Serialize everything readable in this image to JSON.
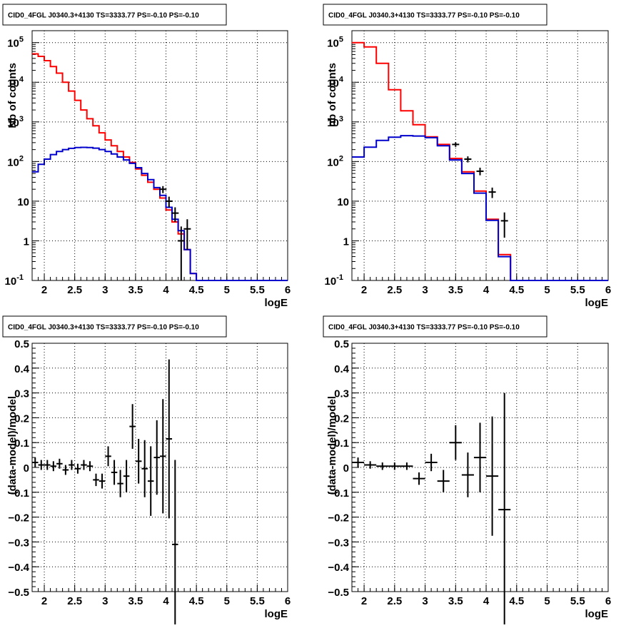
{
  "chart_data": [
    {
      "type": "line",
      "title": "CID0_4FGL J0340.3+4130 TS=3333.77 PS=-0.10 PS=-0.10",
      "xlabel": "logE",
      "ylabel": "Nb of counts",
      "xlim": [
        1.8,
        6.0
      ],
      "ylim": [
        0.1,
        200000
      ],
      "yscale": "log",
      "grid": true,
      "x_ticks": [
        "2",
        "2.5",
        "3",
        "3.5",
        "4",
        "4.5",
        "5",
        "5.5",
        "6"
      ],
      "y_ticks": [
        {
          "base": "10",
          "exp": "-1"
        },
        {
          "base": "1",
          "exp": ""
        },
        {
          "base": "10",
          "exp": ""
        },
        {
          "base": "10",
          "exp": "2"
        },
        {
          "base": "10",
          "exp": "3"
        },
        {
          "base": "10",
          "exp": "4"
        },
        {
          "base": "10",
          "exp": "5"
        }
      ],
      "bin_edges": [
        1.8,
        1.9,
        2.0,
        2.1,
        2.2,
        2.3,
        2.4,
        2.5,
        2.6,
        2.7,
        2.8,
        2.9,
        3.0,
        3.1,
        3.2,
        3.3,
        3.4,
        3.5,
        3.6,
        3.7,
        3.8,
        3.9,
        4.0,
        4.1,
        4.2,
        4.3,
        4.4,
        4.5,
        4.6,
        4.7,
        6.0
      ],
      "series": [
        {
          "color": "#ff0000",
          "style": "step",
          "values": [
            52000,
            45000,
            35000,
            25000,
            17000,
            10000,
            6000,
            3500,
            2000,
            1200,
            800,
            530,
            350,
            250,
            180,
            130,
            95,
            65,
            45,
            30,
            20,
            12,
            6,
            3,
            1.5,
            0.6,
            0.15,
            0.1,
            0.1,
            0.1
          ]
        },
        {
          "color": "#0000cc",
          "style": "step",
          "values": [
            55,
            85,
            115,
            150,
            180,
            200,
            215,
            225,
            228,
            226,
            218,
            200,
            180,
            155,
            130,
            110,
            90,
            70,
            50,
            35,
            22,
            14,
            7,
            3.5,
            1.8,
            0.6,
            0.15,
            0.1,
            0.1,
            0.1
          ]
        },
        {
          "color": "#000000",
          "style": "points",
          "points": [
            {
              "x": 3.95,
              "y": 20,
              "lo": 16,
              "hi": 24
            },
            {
              "x": 4.05,
              "y": 10,
              "lo": 7,
              "hi": 13
            },
            {
              "x": 4.15,
              "y": 5,
              "lo": 3,
              "hi": 7
            },
            {
              "x": 4.25,
              "y": 1,
              "lo": 0.1,
              "hi": 2.3
            },
            {
              "x": 4.35,
              "y": 2,
              "lo": 0.6,
              "hi": 3.5
            }
          ]
        }
      ]
    },
    {
      "type": "line",
      "title": "CID0_4FGL J0340.3+4130 TS=3333.77 PS=-0.10 PS=-0.10",
      "xlabel": "logE",
      "ylabel": "nb of counts",
      "xlim": [
        1.8,
        6.0
      ],
      "ylim": [
        0.1,
        200000
      ],
      "yscale": "log",
      "grid": true,
      "x_ticks": [
        "2",
        "2.5",
        "3",
        "3.5",
        "4",
        "4.5",
        "5",
        "5.5",
        "6"
      ],
      "y_ticks": [
        {
          "base": "10",
          "exp": "-1"
        },
        {
          "base": "1",
          "exp": ""
        },
        {
          "base": "10",
          "exp": ""
        },
        {
          "base": "10",
          "exp": "2"
        },
        {
          "base": "10",
          "exp": "3"
        },
        {
          "base": "10",
          "exp": "4"
        },
        {
          "base": "10",
          "exp": "5"
        }
      ],
      "bin_edges": [
        1.8,
        2.0,
        2.2,
        2.4,
        2.6,
        2.8,
        3.0,
        3.2,
        3.4,
        3.6,
        3.8,
        4.0,
        4.2,
        4.4,
        4.6,
        6.0
      ],
      "series": [
        {
          "color": "#ff0000",
          "style": "step",
          "values": [
            100000,
            78000,
            30000,
            6500,
            1900,
            850,
            420,
            270,
            120,
            55,
            18,
            3.5,
            0.45,
            0.1,
            0.1
          ]
        },
        {
          "color": "#0000cc",
          "style": "step",
          "values": [
            130,
            230,
            340,
            410,
            450,
            440,
            400,
            250,
            110,
            50,
            16,
            3.3,
            0.4,
            0.1,
            0.1
          ]
        },
        {
          "color": "#000000",
          "style": "points",
          "points": [
            {
              "x": 3.5,
              "y": 270,
              "lo": 235,
              "hi": 305
            },
            {
              "x": 3.7,
              "y": 115,
              "lo": 95,
              "hi": 135
            },
            {
              "x": 3.9,
              "y": 57,
              "lo": 45,
              "hi": 70
            },
            {
              "x": 4.1,
              "y": 17,
              "lo": 12,
              "hi": 22
            },
            {
              "x": 4.3,
              "y": 3.2,
              "lo": 1.2,
              "hi": 5.2
            }
          ]
        }
      ]
    },
    {
      "type": "scatter",
      "title": "CID0_4FGL J0340.3+4130 TS=3333.77 PS=-0.10 PS=-0.10",
      "xlabel": "logE",
      "ylabel": "(data-model)/model",
      "xlim": [
        1.8,
        6.0
      ],
      "ylim": [
        -0.5,
        0.5
      ],
      "grid": true,
      "x_ticks": [
        "2",
        "2.5",
        "3",
        "3.5",
        "4",
        "4.5",
        "5",
        "5.5",
        "6"
      ],
      "y_ticks": [
        "−0.5",
        "−0.4",
        "−0.3",
        "−0.2",
        "−0.1",
        "0",
        "0.1",
        "0.2",
        "0.3",
        "0.4",
        "0.5"
      ],
      "points": [
        {
          "x": 1.85,
          "y": 0.02,
          "xerr": 0.05,
          "yerr": 0.02
        },
        {
          "x": 1.95,
          "y": 0.01,
          "xerr": 0.05,
          "yerr": 0.02
        },
        {
          "x": 2.05,
          "y": 0.01,
          "xerr": 0.05,
          "yerr": 0.02
        },
        {
          "x": 2.15,
          "y": 0.005,
          "xerr": 0.05,
          "yerr": 0.02
        },
        {
          "x": 2.25,
          "y": 0.015,
          "xerr": 0.05,
          "yerr": 0.02
        },
        {
          "x": 2.35,
          "y": -0.01,
          "xerr": 0.05,
          "yerr": 0.02
        },
        {
          "x": 2.45,
          "y": 0.01,
          "xerr": 0.05,
          "yerr": 0.02
        },
        {
          "x": 2.55,
          "y": -0.005,
          "xerr": 0.05,
          "yerr": 0.02
        },
        {
          "x": 2.65,
          "y": 0.01,
          "xerr": 0.05,
          "yerr": 0.02
        },
        {
          "x": 2.75,
          "y": 0.005,
          "xerr": 0.05,
          "yerr": 0.02
        },
        {
          "x": 2.85,
          "y": -0.05,
          "xerr": 0.05,
          "yerr": 0.025
        },
        {
          "x": 2.95,
          "y": -0.055,
          "xerr": 0.05,
          "yerr": 0.03
        },
        {
          "x": 3.05,
          "y": 0.045,
          "xerr": 0.05,
          "yerr": 0.04
        },
        {
          "x": 3.15,
          "y": -0.02,
          "xerr": 0.05,
          "yerr": 0.05
        },
        {
          "x": 3.25,
          "y": -0.065,
          "xerr": 0.05,
          "yerr": 0.055
        },
        {
          "x": 3.35,
          "y": -0.035,
          "xerr": 0.05,
          "yerr": 0.065
        },
        {
          "x": 3.45,
          "y": 0.165,
          "xerr": 0.05,
          "yerr": 0.09
        },
        {
          "x": 3.55,
          "y": 0.025,
          "xerr": 0.05,
          "yerr": 0.09
        },
        {
          "x": 3.65,
          "y": -0.005,
          "xerr": 0.05,
          "yerr": 0.115
        },
        {
          "x": 3.75,
          "y": -0.055,
          "xerr": 0.05,
          "yerr": 0.14
        },
        {
          "x": 3.85,
          "y": 0.04,
          "xerr": 0.05,
          "yerr": 0.15
        },
        {
          "x": 3.95,
          "y": 0.045,
          "xerr": 0.05,
          "yerr": 0.23
        },
        {
          "x": 4.05,
          "y": 0.115,
          "xerr": 0.05,
          "yerr": 0.32
        },
        {
          "x": 4.15,
          "y": -0.31,
          "xerr": 0.05,
          "yerr": 0.34
        }
      ]
    },
    {
      "type": "scatter",
      "title": "CID0_4FGL J0340.3+4130 TS=3333.77 PS=-0.10 PS=-0.10",
      "xlabel": "logE",
      "ylabel": "(data-model)/model",
      "xlim": [
        1.8,
        6.0
      ],
      "ylim": [
        -0.5,
        0.5
      ],
      "grid": true,
      "x_ticks": [
        "2",
        "2.5",
        "3",
        "3.5",
        "4",
        "4.5",
        "5",
        "5.5",
        "6"
      ],
      "y_ticks": [
        "−0.5",
        "−0.4",
        "−0.3",
        "−0.2",
        "−0.1",
        "0",
        "0.1",
        "0.2",
        "0.3",
        "0.4",
        "0.5"
      ],
      "points": [
        {
          "x": 1.9,
          "y": 0.02,
          "xerr": 0.1,
          "yerr": 0.02
        },
        {
          "x": 2.1,
          "y": 0.01,
          "xerr": 0.1,
          "yerr": 0.015
        },
        {
          "x": 2.3,
          "y": 0.005,
          "xerr": 0.1,
          "yerr": 0.015
        },
        {
          "x": 2.5,
          "y": 0.005,
          "xerr": 0.1,
          "yerr": 0.015
        },
        {
          "x": 2.7,
          "y": 0.005,
          "xerr": 0.1,
          "yerr": 0.015
        },
        {
          "x": 2.9,
          "y": -0.045,
          "xerr": 0.1,
          "yerr": 0.025
        },
        {
          "x": 3.1,
          "y": 0.02,
          "xerr": 0.1,
          "yerr": 0.035
        },
        {
          "x": 3.3,
          "y": -0.055,
          "xerr": 0.1,
          "yerr": 0.045
        },
        {
          "x": 3.5,
          "y": 0.1,
          "xerr": 0.1,
          "yerr": 0.07
        },
        {
          "x": 3.7,
          "y": -0.03,
          "xerr": 0.1,
          "yerr": 0.09
        },
        {
          "x": 3.9,
          "y": 0.04,
          "xerr": 0.1,
          "yerr": 0.14
        },
        {
          "x": 4.1,
          "y": -0.035,
          "xerr": 0.1,
          "yerr": 0.24
        },
        {
          "x": 4.3,
          "y": -0.17,
          "xerr": 0.1,
          "yerr": 0.47
        }
      ]
    }
  ]
}
